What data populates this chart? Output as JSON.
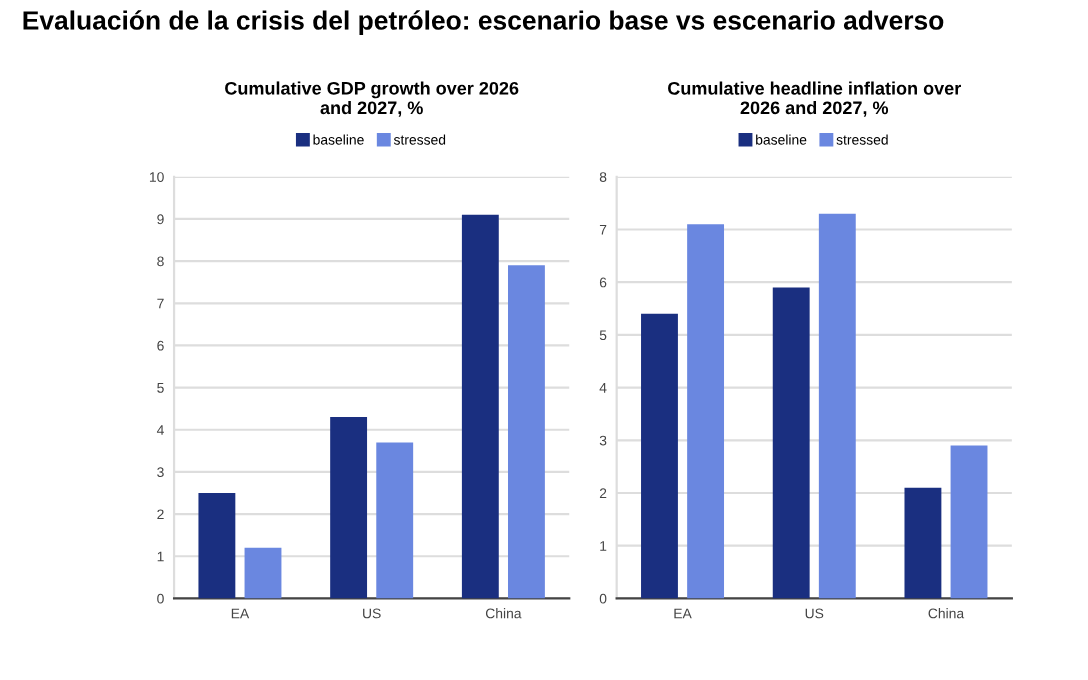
{
  "chart_data": [
    {
      "type": "bar",
      "title": "Evaluación de la crisis del petróleo: escenario base vs escenario adverso",
      "subtitle": "Cumulative GDP growth over 2026\nand 2027, %",
      "categories": [
        "EA",
        "US",
        "China"
      ],
      "series": [
        {
          "name": "baseline",
          "color": "#1a2f80",
          "values": [
            2.5,
            4.3,
            9.1
          ]
        },
        {
          "name": "stressed",
          "color": "#6a87e0",
          "values": [
            1.2,
            3.7,
            7.9
          ]
        }
      ],
      "ylim": [
        0,
        10
      ],
      "yticks": [
        0,
        1,
        2,
        3,
        4,
        5,
        6,
        7,
        8,
        9,
        10
      ],
      "grid": "y",
      "legend": "top"
    },
    {
      "type": "bar",
      "subtitle": "Cumulative headline inflation over\n2026 and 2027, %",
      "categories": [
        "EA",
        "US",
        "China"
      ],
      "series": [
        {
          "name": "baseline",
          "color": "#1a2f80",
          "values": [
            5.4,
            5.9,
            2.1
          ]
        },
        {
          "name": "stressed",
          "color": "#6a87e0",
          "values": [
            7.1,
            7.3,
            2.9
          ]
        }
      ],
      "ylim": [
        0,
        8
      ],
      "yticks": [
        0,
        1,
        2,
        3,
        4,
        5,
        6,
        7,
        8
      ],
      "grid": "y",
      "legend": "top"
    }
  ]
}
